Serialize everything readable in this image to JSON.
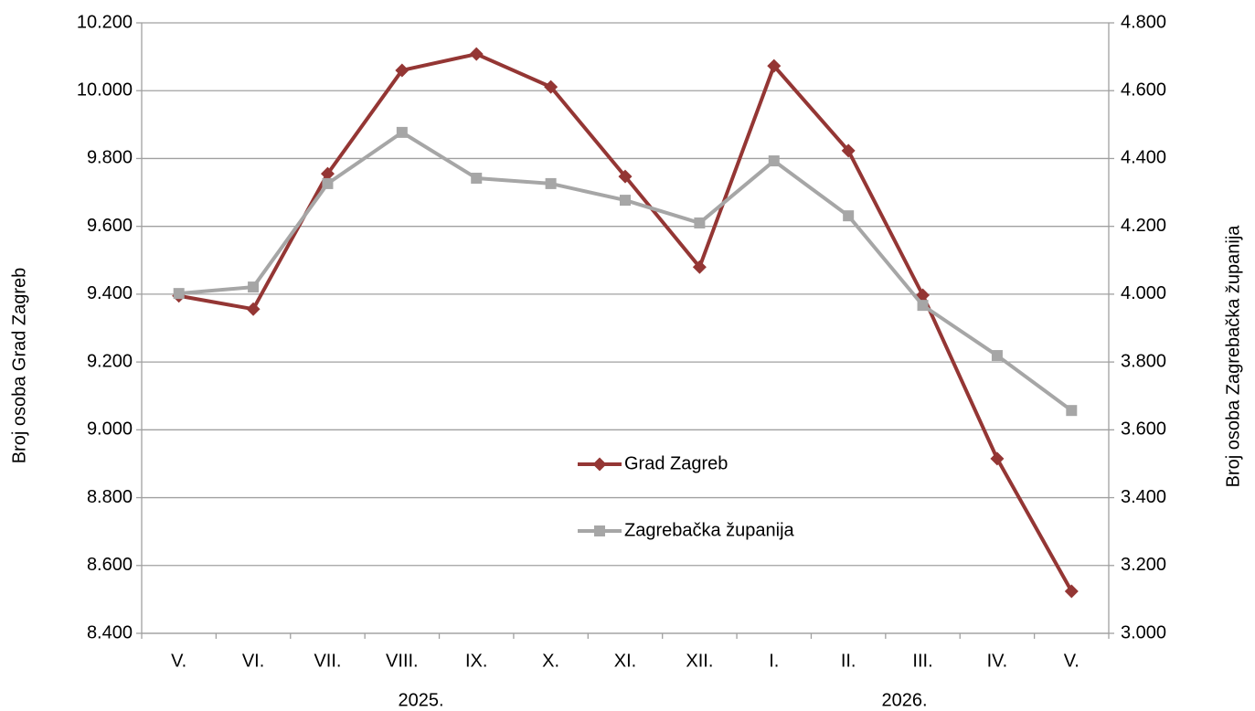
{
  "chart_data": {
    "type": "line",
    "categories": [
      "V.",
      "VI.",
      "VII.",
      "VIII.",
      "IX.",
      "X.",
      "XI.",
      "XII.",
      "I.",
      "II.",
      "III.",
      "IV.",
      "V."
    ],
    "x_groups": [
      {
        "label": "2025.",
        "count": 8
      },
      {
        "label": "2026.",
        "count": 5
      }
    ],
    "ylabel": "Broj osoba Grad Zagreb",
    "y2label": "Broj osoba Zagrebačka županija",
    "ylim": [
      8400,
      10200
    ],
    "yticks": [
      {
        "value": 8400,
        "label": "8.400"
      },
      {
        "value": 8600,
        "label": "8.600"
      },
      {
        "value": 8800,
        "label": "8.800"
      },
      {
        "value": 9000,
        "label": "9.000"
      },
      {
        "value": 9200,
        "label": "9.200"
      },
      {
        "value": 9400,
        "label": "9.400"
      },
      {
        "value": 9600,
        "label": "9.600"
      },
      {
        "value": 9800,
        "label": "9.800"
      },
      {
        "value": 10000,
        "label": "10.000"
      },
      {
        "value": 10200,
        "label": "10.200"
      }
    ],
    "y2lim": [
      3000,
      4800
    ],
    "y2ticks": [
      {
        "value": 3000,
        "label": "3.000"
      },
      {
        "value": 3200,
        "label": "3.200"
      },
      {
        "value": 3400,
        "label": "3.400"
      },
      {
        "value": 3600,
        "label": "3.600"
      },
      {
        "value": 3800,
        "label": "3.800"
      },
      {
        "value": 4000,
        "label": "4.000"
      },
      {
        "value": 4200,
        "label": "4.200"
      },
      {
        "value": 4400,
        "label": "4.400"
      },
      {
        "value": 4600,
        "label": "4.600"
      },
      {
        "value": 4800,
        "label": "4.800"
      }
    ],
    "grid": true,
    "legend": "center",
    "series": [
      {
        "name": "Grad Zagreb",
        "color": "#943634",
        "marker": "diamond",
        "values": [
          9395,
          9356,
          9755,
          10060,
          10108,
          10011,
          9747,
          9480,
          10073,
          9823,
          9397,
          8915,
          8524
        ]
      },
      {
        "name": "Zagrebačka županija",
        "color": "#a6a6a6",
        "marker": "square",
        "axis": "y2",
        "values": [
          4002,
          4021,
          4326,
          4477,
          4342,
          4326,
          4277,
          4210,
          4393,
          4231,
          3967,
          3819,
          3657
        ]
      }
    ]
  }
}
